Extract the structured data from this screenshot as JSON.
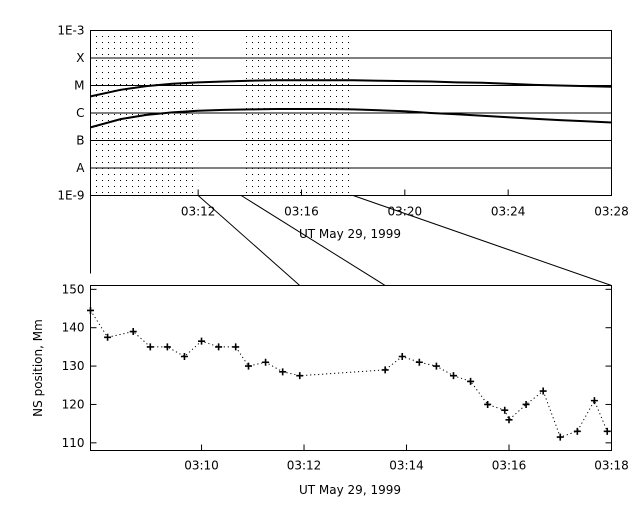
{
  "chart_data": [
    {
      "type": "line",
      "x_ticks": [
        "03:12",
        "03:16",
        "03:20",
        "03:24",
        "03:28"
      ],
      "x_range": [
        "03:07:50",
        "03:28:00"
      ],
      "xlabel": "UT May 29, 1999",
      "y_scale": "log",
      "y_ticks": [
        "1E-3",
        "X",
        "M",
        "C",
        "B",
        "A",
        "1E-9"
      ],
      "y_range": [
        "1E-9",
        "1E-3"
      ],
      "grid": "horizontal lines at each y tick",
      "shaded_intervals": [
        [
          "03:07:50",
          "03:12:00"
        ],
        [
          "03:13:40",
          "03:18:00"
        ]
      ],
      "series": [
        {
          "x": [
            "03:07:50",
            "03:09",
            "03:10",
            "03:11",
            "03:12",
            "03:13",
            "03:14",
            "03:15",
            "03:16",
            "03:17",
            "03:18",
            "03:19",
            "03:20",
            "03:21",
            "03:22",
            "03:23",
            "03:24",
            "03:25",
            "03:26",
            "03:27",
            "03:28"
          ],
          "values": [
            4e-06,
            7e-06,
            9.5e-06,
            1.15e-05,
            1.3e-05,
            1.4e-05,
            1.5e-05,
            1.55e-05,
            1.55e-05,
            1.55e-05,
            1.55e-05,
            1.5e-05,
            1.45e-05,
            1.4e-05,
            1.3e-05,
            1.25e-05,
            1.15e-05,
            1.05e-05,
            1e-05,
            9.5e-06,
            9e-06
          ]
        },
        {
          "x": [
            "03:07:50",
            "03:09",
            "03:10",
            "03:11",
            "03:12",
            "03:13",
            "03:14",
            "03:15",
            "03:16",
            "03:17",
            "03:18",
            "03:19",
            "03:20",
            "03:21",
            "03:22",
            "03:23",
            "03:24",
            "03:25",
            "03:26",
            "03:27",
            "03:28"
          ],
          "values": [
            3e-07,
            6e-07,
            8.5e-07,
            1.05e-06,
            1.2e-06,
            1.3e-06,
            1.35e-06,
            1.4e-06,
            1.4e-06,
            1.4e-06,
            1.35e-06,
            1.25e-06,
            1.15e-06,
            1e-06,
            9e-07,
            8e-07,
            7e-07,
            6.2e-07,
            5.5e-07,
            5e-07,
            4.5e-07
          ]
        }
      ]
    },
    {
      "type": "scatter",
      "style": "plus markers joined by a dotted line",
      "x_ticks": [
        "03:10",
        "03:12",
        "03:14",
        "03:16",
        "03:18"
      ],
      "x_range": [
        "03:07:50",
        "03:18:00"
      ],
      "xlabel": "UT May 29, 1999",
      "ylabel": "NS position, Mm",
      "ylim": [
        108,
        151
      ],
      "y_ticks": [
        110,
        120,
        130,
        140,
        150
      ],
      "points": [
        {
          "x": "03:07:50",
          "y": 144.5
        },
        {
          "x": "03:08:10",
          "y": 137.5
        },
        {
          "x": "03:08:40",
          "y": 139.0
        },
        {
          "x": "03:09:00",
          "y": 135.0
        },
        {
          "x": "03:09:20",
          "y": 135.0
        },
        {
          "x": "03:09:40",
          "y": 132.5
        },
        {
          "x": "03:10:00",
          "y": 136.5
        },
        {
          "x": "03:10:20",
          "y": 135.0
        },
        {
          "x": "03:10:40",
          "y": 135.0
        },
        {
          "x": "03:10:55",
          "y": 130.0
        },
        {
          "x": "03:11:15",
          "y": 131.0
        },
        {
          "x": "03:11:35",
          "y": 128.5
        },
        {
          "x": "03:11:55",
          "y": 127.5
        },
        {
          "x": "03:13:35",
          "y": 129.0
        },
        {
          "x": "03:13:55",
          "y": 132.5
        },
        {
          "x": "03:14:15",
          "y": 131.0
        },
        {
          "x": "03:14:35",
          "y": 130.0
        },
        {
          "x": "03:14:55",
          "y": 127.5
        },
        {
          "x": "03:15:15",
          "y": 126.0
        },
        {
          "x": "03:15:35",
          "y": 120.0
        },
        {
          "x": "03:15:55",
          "y": 118.5
        },
        {
          "x": "03:16:00",
          "y": 116.0
        },
        {
          "x": "03:16:20",
          "y": 120.0
        },
        {
          "x": "03:16:40",
          "y": 123.5
        },
        {
          "x": "03:17:00",
          "y": 111.5
        },
        {
          "x": "03:17:20",
          "y": 113.0
        },
        {
          "x": "03:17:40",
          "y": 121.0
        },
        {
          "x": "03:17:55",
          "y": 113.0
        }
      ]
    }
  ]
}
